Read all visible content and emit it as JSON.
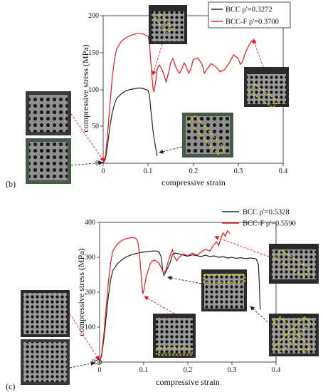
{
  "chart_data": [
    {
      "type": "line",
      "panel_label": "(b)",
      "xlabel": "compressive strain",
      "ylabel": "compressive stress (MPa)",
      "xlim": [
        0,
        0.4
      ],
      "ylim": [
        0,
        200
      ],
      "xticks": [
        "0",
        "0.1",
        "0.2",
        "0.3",
        "0.4"
      ],
      "yticks": [
        "0",
        "50",
        "100",
        "150",
        "200"
      ],
      "legend_position": "top-right",
      "series": [
        {
          "name": "BCC ρ'=0.3272",
          "color": "#222222",
          "points": [
            [
              0,
              0
            ],
            [
              0.005,
              6
            ],
            [
              0.01,
              25
            ],
            [
              0.015,
              50
            ],
            [
              0.02,
              68
            ],
            [
              0.025,
              80
            ],
            [
              0.03,
              88
            ],
            [
              0.04,
              94
            ],
            [
              0.05,
              98
            ],
            [
              0.06,
              100
            ],
            [
              0.07,
              101
            ],
            [
              0.08,
              102
            ],
            [
              0.09,
              101
            ],
            [
              0.095,
              100
            ],
            [
              0.1,
              98
            ],
            [
              0.103,
              92
            ],
            [
              0.107,
              65
            ],
            [
              0.112,
              38
            ],
            [
              0.117,
              20
            ],
            [
              0.12,
              10
            ]
          ]
        },
        {
          "name": "BCC-F ρ'=0.3700",
          "color": "#e31a1c",
          "points": [
            [
              0,
              0
            ],
            [
              0.005,
              10
            ],
            [
              0.01,
              40
            ],
            [
              0.015,
              80
            ],
            [
              0.02,
              115
            ],
            [
              0.025,
              140
            ],
            [
              0.03,
              155
            ],
            [
              0.04,
              165
            ],
            [
              0.05,
              170
            ],
            [
              0.06,
              173
            ],
            [
              0.07,
              175
            ],
            [
              0.08,
              176
            ],
            [
              0.09,
              175
            ],
            [
              0.1,
              172
            ],
            [
              0.103,
              162
            ],
            [
              0.107,
              128
            ],
            [
              0.111,
              100
            ],
            [
              0.113,
              97
            ],
            [
              0.117,
              112
            ],
            [
              0.12,
              128
            ],
            [
              0.125,
              133
            ],
            [
              0.13,
              128
            ],
            [
              0.135,
              120
            ],
            [
              0.14,
              110
            ],
            [
              0.145,
              122
            ],
            [
              0.15,
              136
            ],
            [
              0.155,
              142
            ],
            [
              0.16,
              133
            ],
            [
              0.165,
              126
            ],
            [
              0.17,
              122
            ],
            [
              0.175,
              128
            ],
            [
              0.18,
              136
            ],
            [
              0.185,
              130
            ],
            [
              0.19,
              122
            ],
            [
              0.195,
              128
            ],
            [
              0.2,
              140
            ],
            [
              0.21,
              143
            ],
            [
              0.22,
              134
            ],
            [
              0.225,
              122
            ],
            [
              0.23,
              127
            ],
            [
              0.24,
              135
            ],
            [
              0.25,
              131
            ],
            [
              0.26,
              124
            ],
            [
              0.27,
              127
            ],
            [
              0.28,
              136
            ],
            [
              0.29,
              147
            ],
            [
              0.3,
              142
            ],
            [
              0.305,
              134
            ],
            [
              0.31,
              138
            ],
            [
              0.315,
              148
            ],
            [
              0.32,
              155
            ],
            [
              0.325,
              161
            ],
            [
              0.33,
              166
            ],
            [
              0.335,
              163
            ],
            [
              0.34,
              162
            ]
          ]
        }
      ]
    },
    {
      "type": "line",
      "panel_label": "(c)",
      "xlabel": "compressive strain",
      "ylabel": "compressive stress (MPa)",
      "xlim": [
        0,
        0.4
      ],
      "ylim": [
        0,
        400
      ],
      "xticks": [
        "0",
        "0.1",
        "0.2",
        "0.3",
        "0.4"
      ],
      "yticks": [
        "0",
        "100",
        "200",
        "300",
        "400"
      ],
      "legend_position": "top-right",
      "series": [
        {
          "name": "BCC ρ'=0.5328",
          "color": "#222222",
          "points": [
            [
              0,
              0
            ],
            [
              0.005,
              20
            ],
            [
              0.01,
              70
            ],
            [
              0.015,
              130
            ],
            [
              0.02,
              190
            ],
            [
              0.025,
              235
            ],
            [
              0.03,
              262
            ],
            [
              0.04,
              281
            ],
            [
              0.05,
              292
            ],
            [
              0.06,
              301
            ],
            [
              0.07,
              306
            ],
            [
              0.08,
              310
            ],
            [
              0.09,
              313
            ],
            [
              0.1,
              315
            ],
            [
              0.11,
              317
            ],
            [
              0.12,
              318
            ],
            [
              0.13,
              318
            ],
            [
              0.135,
              315
            ],
            [
              0.14,
              300
            ],
            [
              0.143,
              262
            ],
            [
              0.146,
              248
            ],
            [
              0.15,
              258
            ],
            [
              0.155,
              272
            ],
            [
              0.16,
              285
            ],
            [
              0.165,
              308
            ],
            [
              0.17,
              312
            ],
            [
              0.18,
              310
            ],
            [
              0.19,
              306
            ],
            [
              0.2,
              303
            ],
            [
              0.21,
              307
            ],
            [
              0.22,
              305
            ],
            [
              0.23,
              302
            ],
            [
              0.24,
              306
            ],
            [
              0.25,
              302
            ],
            [
              0.26,
              304
            ],
            [
              0.27,
              300
            ],
            [
              0.28,
              302
            ],
            [
              0.29,
              298
            ],
            [
              0.3,
              300
            ],
            [
              0.31,
              297
            ],
            [
              0.32,
              299
            ],
            [
              0.33,
              296
            ],
            [
              0.34,
              298
            ],
            [
              0.35,
              297
            ],
            [
              0.355,
              295
            ],
            [
              0.36,
              280
            ],
            [
              0.362,
              230
            ],
            [
              0.364,
              150
            ]
          ]
        },
        {
          "name": "BCC-F ρ'=0.5590",
          "color": "#e31a1c",
          "points": [
            [
              0,
              0
            ],
            [
              0.005,
              25
            ],
            [
              0.01,
              85
            ],
            [
              0.015,
              160
            ],
            [
              0.02,
              230
            ],
            [
              0.025,
              285
            ],
            [
              0.03,
              318
            ],
            [
              0.04,
              338
            ],
            [
              0.05,
              348
            ],
            [
              0.06,
              353
            ],
            [
              0.07,
              356
            ],
            [
              0.075,
              357
            ],
            [
              0.08,
              356
            ],
            [
              0.085,
              350
            ],
            [
              0.088,
              335
            ],
            [
              0.09,
              312
            ],
            [
              0.093,
              270
            ],
            [
              0.096,
              220
            ],
            [
              0.098,
              195
            ],
            [
              0.101,
              210
            ],
            [
              0.105,
              240
            ],
            [
              0.11,
              262
            ],
            [
              0.115,
              282
            ],
            [
              0.12,
              290
            ],
            [
              0.125,
              292
            ],
            [
              0.13,
              288
            ],
            [
              0.135,
              282
            ],
            [
              0.14,
              270
            ],
            [
              0.145,
              255
            ],
            [
              0.15,
              262
            ],
            [
              0.155,
              285
            ],
            [
              0.16,
              305
            ],
            [
              0.165,
              322
            ],
            [
              0.17,
              300
            ],
            [
              0.175,
              290
            ],
            [
              0.18,
              300
            ],
            [
              0.19,
              310
            ],
            [
              0.2,
              304
            ],
            [
              0.21,
              312
            ],
            [
              0.22,
              306
            ],
            [
              0.23,
              315
            ],
            [
              0.24,
              323
            ],
            [
              0.25,
              318
            ],
            [
              0.26,
              338
            ],
            [
              0.265,
              344
            ],
            [
              0.27,
              334
            ],
            [
              0.275,
              355
            ],
            [
              0.28,
              370
            ],
            [
              0.285,
              360
            ],
            [
              0.29,
              376
            ],
            [
              0.295,
              368
            ]
          ]
        }
      ]
    }
  ],
  "photos": [
    {
      "panel": 0,
      "name": "specimen-photo-initial-bcc-f"
    },
    {
      "panel": 0,
      "name": "specimen-photo-initial-bcc"
    },
    {
      "panel": 0,
      "name": "specimen-photo-bcc-f-early-band"
    },
    {
      "panel": 0,
      "name": "specimen-photo-bcc-f-diagonal-band"
    },
    {
      "panel": 0,
      "name": "specimen-photo-bcc-diagonal-band"
    },
    {
      "panel": 1,
      "name": "specimen-photo-initial-bcc-f"
    },
    {
      "panel": 1,
      "name": "specimen-photo-initial-bcc"
    },
    {
      "panel": 1,
      "name": "specimen-photo-bcc-f-bottom-layer"
    },
    {
      "panel": 1,
      "name": "specimen-photo-bcc-top-layer"
    },
    {
      "panel": 1,
      "name": "specimen-photo-bcc-f-diagonal-band"
    },
    {
      "panel": 1,
      "name": "specimen-photo-bcc-x-band"
    }
  ]
}
